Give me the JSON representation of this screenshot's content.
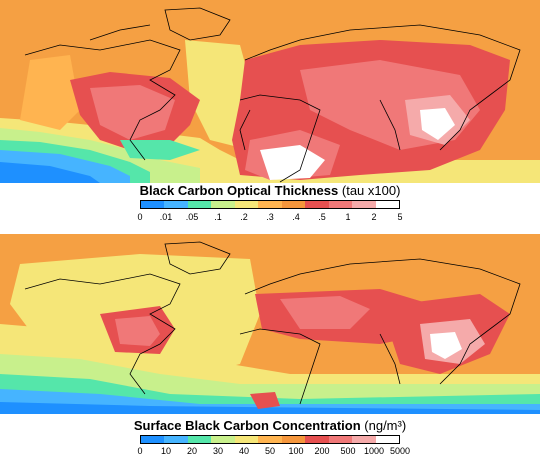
{
  "panels": [
    {
      "title_main": "Black Carbon Optical Thickness",
      "title_unit": "(tau x100)",
      "tick_labels": [
        "0",
        ".01",
        ".05",
        ".1",
        ".2",
        ".3",
        ".4",
        ".5",
        "1",
        "2",
        "5"
      ]
    },
    {
      "title_main": "Surface Black Carbon Concentration",
      "title_unit": "(ng/m³)",
      "tick_labels": [
        "0",
        "10",
        "20",
        "30",
        "40",
        "50",
        "100",
        "200",
        "500",
        "1000",
        "5000"
      ]
    }
  ],
  "colorbar_colors": [
    "#1e90ff",
    "#46b4ff",
    "#55e6aa",
    "#c8f08c",
    "#f5e678",
    "#ffb450",
    "#f5963c",
    "#e65050",
    "#f07878",
    "#f5aaaa",
    "#ffffff"
  ]
}
